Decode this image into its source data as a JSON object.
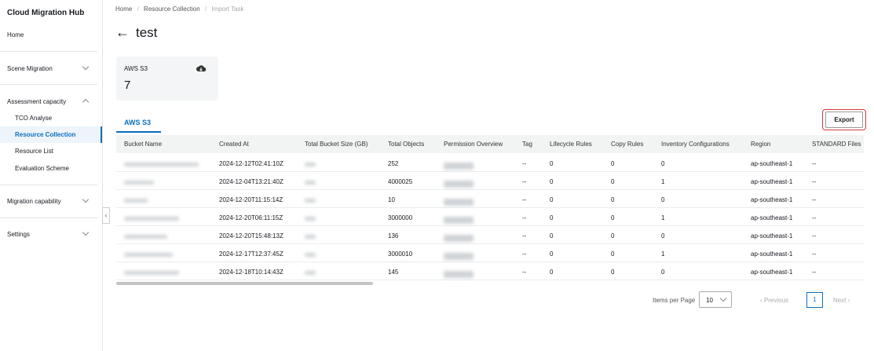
{
  "sidebar": {
    "title": "Cloud Migration Hub",
    "items": [
      {
        "label": "Home"
      },
      {
        "label": "Scene Migration"
      },
      {
        "label": "Assessment capacity",
        "children": [
          "TCO Analyse",
          "Resource Collection",
          "Resource List",
          "Evaluation Scheme"
        ]
      },
      {
        "label": "Migration capability"
      },
      {
        "label": "Settings"
      }
    ]
  },
  "breadcrumb": [
    "Home",
    "Resource Collection",
    "Import Task"
  ],
  "page_title": "test",
  "summary_card": {
    "label": "AWS S3",
    "value": "7"
  },
  "tab": "AWS S3",
  "export_button": "Export",
  "table": {
    "columns": [
      "Bucket Name",
      "Created At",
      "Total Bucket Size (GB)",
      "Total Objects",
      "Permission Overview",
      "Tag",
      "Lifecycle Rules",
      "Copy Rules",
      "Inventory Configurations",
      "Region",
      "STANDARD Files"
    ],
    "rows": [
      {
        "created_at": "2024-12-12T02:41:10Z",
        "total_objects": "252",
        "tag": "--",
        "lifecycle_rules": "0",
        "copy_rules": "0",
        "inventory_configurations": "0",
        "region": "ap-southeast-1",
        "standard_files": "--"
      },
      {
        "created_at": "2024-12-04T13:21:40Z",
        "total_objects": "4000025",
        "tag": "--",
        "lifecycle_rules": "0",
        "copy_rules": "0",
        "inventory_configurations": "1",
        "region": "ap-southeast-1",
        "standard_files": "--"
      },
      {
        "created_at": "2024-12-20T11:15:14Z",
        "total_objects": "10",
        "tag": "--",
        "lifecycle_rules": "0",
        "copy_rules": "0",
        "inventory_configurations": "0",
        "region": "ap-southeast-1",
        "standard_files": "--"
      },
      {
        "created_at": "2024-12-20T06:11:15Z",
        "total_objects": "3000000",
        "tag": "--",
        "lifecycle_rules": "0",
        "copy_rules": "0",
        "inventory_configurations": "1",
        "region": "ap-southeast-1",
        "standard_files": "--"
      },
      {
        "created_at": "2024-12-20T15:48:13Z",
        "total_objects": "136",
        "tag": "--",
        "lifecycle_rules": "0",
        "copy_rules": "0",
        "inventory_configurations": "0",
        "region": "ap-southeast-1",
        "standard_files": "--"
      },
      {
        "created_at": "2024-12-17T12:37:45Z",
        "total_objects": "3000010",
        "tag": "--",
        "lifecycle_rules": "0",
        "copy_rules": "0",
        "inventory_configurations": "1",
        "region": "ap-southeast-1",
        "standard_files": "--"
      },
      {
        "created_at": "2024-12-18T10:14:43Z",
        "total_objects": "145",
        "tag": "--",
        "lifecycle_rules": "0",
        "copy_rules": "0",
        "inventory_configurations": "0",
        "region": "ap-southeast-1",
        "standard_files": "--"
      }
    ]
  },
  "pagination": {
    "items_per_page_label": "Items per Page",
    "items_per_page": "10",
    "previous": "Previous",
    "current_page": "1",
    "next": "Next"
  }
}
